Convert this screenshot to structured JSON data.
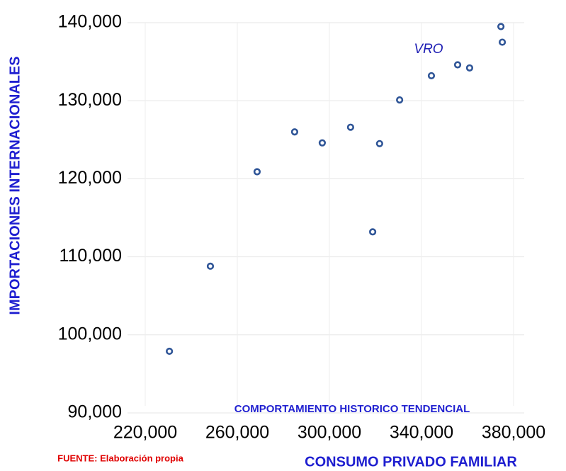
{
  "chart_data": {
    "type": "scatter",
    "x_label": "CONSUMO PRIVADO FAMILIAR",
    "y_label": "IMPORTACIONES INTERNACIONALES",
    "annotations": [
      "VRO",
      "COMPORTAMIENTO HISTORICO TENDENCIAL",
      "FUENTE: Elaboración propia"
    ],
    "color": "#2f5597",
    "grid": true,
    "x": [
      230500,
      248300,
      268600,
      284900,
      296900,
      309200,
      318800,
      321800,
      330500,
      344300,
      355700,
      360900,
      374500,
      375100
    ],
    "values": [
      97900,
      108800,
      120900,
      126000,
      124600,
      126600,
      113200,
      124500,
      130100,
      133200,
      134600,
      134200,
      139500,
      137500
    ],
    "xlim": [
      220000,
      380000
    ],
    "xticks": [
      {
        "value": 220000,
        "label": "220,000"
      },
      {
        "value": 260000,
        "label": "260,000"
      },
      {
        "value": 300000,
        "label": "300,000"
      },
      {
        "value": 340000,
        "label": "340,000"
      },
      {
        "value": 380000,
        "label": "380,000"
      }
    ],
    "ylim": [
      90000,
      140000
    ],
    "yticks": [
      {
        "value": 90000,
        "label": "90,000"
      },
      {
        "value": 100000,
        "label": "100,000"
      },
      {
        "value": 110000,
        "label": "110,000"
      },
      {
        "value": 120000,
        "label": "120,000"
      },
      {
        "value": 130000,
        "label": "130,000"
      },
      {
        "value": 140000,
        "label": "140,000"
      }
    ]
  }
}
